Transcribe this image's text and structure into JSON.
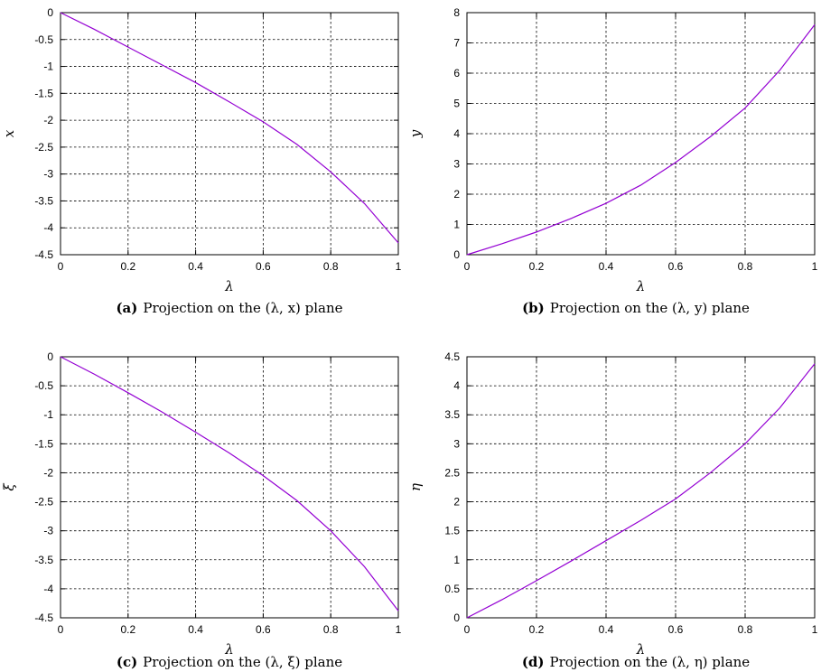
{
  "colors": {
    "curve": "#9400D3",
    "grid": "#000000",
    "frame": "#000000"
  },
  "chart_data": [
    {
      "type": "line",
      "panel": "a",
      "xlabel": "λ",
      "ylabel": "x",
      "xlim": [
        0,
        1
      ],
      "ylim": [
        -4.5,
        0
      ],
      "xticks": [
        "0",
        "0.2",
        "0.4",
        "0.6",
        "0.8",
        "1"
      ],
      "yticks": [
        "0",
        "-0.5",
        "-1",
        "-1.5",
        "-2",
        "-2.5",
        "-3",
        "-3.5",
        "-4",
        "-4.5"
      ],
      "grid": true,
      "caption_id": "(a)",
      "caption_text": "Projection on the (λ, x) plane",
      "series": [
        {
          "x": [
            0,
            0.1,
            0.2,
            0.3,
            0.4,
            0.5,
            0.6,
            0.7,
            0.8,
            0.9,
            1.0
          ],
          "y": [
            0,
            -0.31,
            -0.64,
            -0.97,
            -1.3,
            -1.66,
            -2.03,
            -2.45,
            -2.96,
            -3.55,
            -4.28
          ]
        }
      ]
    },
    {
      "type": "line",
      "panel": "b",
      "xlabel": "λ",
      "ylabel": "y",
      "xlim": [
        0,
        1
      ],
      "ylim": [
        0,
        8
      ],
      "xticks": [
        "0",
        "0.2",
        "0.4",
        "0.6",
        "0.8",
        "1"
      ],
      "yticks": [
        "0",
        "1",
        "2",
        "3",
        "4",
        "5",
        "6",
        "7",
        "8"
      ],
      "grid": true,
      "caption_id": "(b)",
      "caption_text": "Projection on the (λ, y) plane",
      "series": [
        {
          "x": [
            0,
            0.1,
            0.2,
            0.3,
            0.4,
            0.5,
            0.6,
            0.7,
            0.8,
            0.9,
            1.0
          ],
          "y": [
            0,
            0.36,
            0.75,
            1.2,
            1.7,
            2.3,
            3.05,
            3.9,
            4.85,
            6.1,
            7.6
          ]
        }
      ]
    },
    {
      "type": "line",
      "panel": "c",
      "xlabel": "λ",
      "ylabel": "ξ",
      "xlim": [
        0,
        1
      ],
      "ylim": [
        -4.5,
        0
      ],
      "xticks": [
        "0",
        "0.2",
        "0.4",
        "0.6",
        "0.8",
        "1"
      ],
      "yticks": [
        "0",
        "-0.5",
        "-1",
        "-1.5",
        "-2",
        "-2.5",
        "-3",
        "-3.5",
        "-4",
        "-4.5"
      ],
      "grid": true,
      "caption_id": "(c)",
      "caption_text": "Projection on the (λ, ξ) plane",
      "series": [
        {
          "x": [
            0,
            0.1,
            0.2,
            0.3,
            0.4,
            0.5,
            0.6,
            0.7,
            0.8,
            0.9,
            1.0
          ],
          "y": [
            0,
            -0.3,
            -0.62,
            -0.95,
            -1.3,
            -1.66,
            -2.05,
            -2.48,
            -3.0,
            -3.62,
            -4.38
          ]
        }
      ]
    },
    {
      "type": "line",
      "panel": "d",
      "xlabel": "λ",
      "ylabel": "η",
      "xlim": [
        0,
        1
      ],
      "ylim": [
        0,
        4.5
      ],
      "xticks": [
        "0",
        "0.2",
        "0.4",
        "0.6",
        "0.8",
        "1"
      ],
      "yticks": [
        "0",
        "0.5",
        "1",
        "1.5",
        "2",
        "2.5",
        "3",
        "3.5",
        "4",
        "4.5"
      ],
      "grid": true,
      "caption_id": "(d)",
      "caption_text": "Projection on the (λ, η) plane",
      "series": [
        {
          "x": [
            0,
            0.1,
            0.2,
            0.3,
            0.4,
            0.5,
            0.6,
            0.7,
            0.8,
            0.9,
            1.0
          ],
          "y": [
            0,
            0.31,
            0.64,
            0.98,
            1.33,
            1.68,
            2.05,
            2.5,
            3.0,
            3.62,
            4.38
          ]
        }
      ]
    }
  ]
}
